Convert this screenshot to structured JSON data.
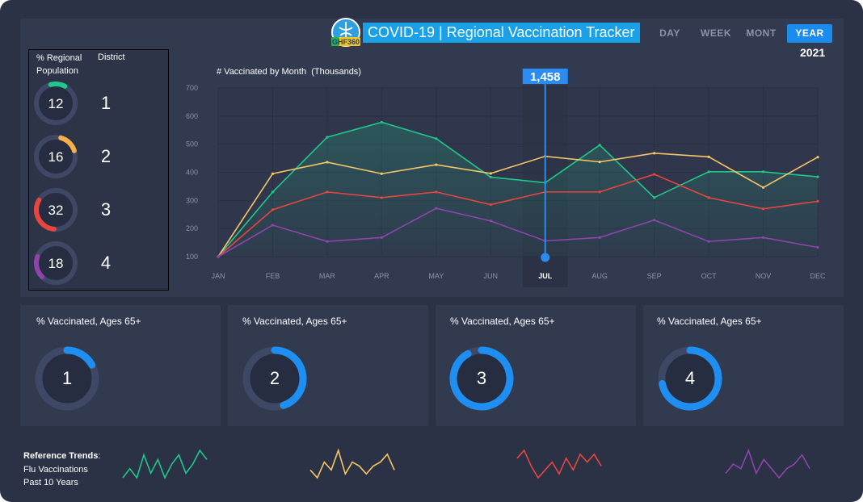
{
  "header": {
    "title": "COVID-19 | Regional Vaccination Tracker",
    "logo_text": "GHF360",
    "periods": [
      "DAY",
      "WEEK",
      "MONT",
      "YEAR"
    ],
    "active_period": "YEAR",
    "year": "2021"
  },
  "districts": {
    "col_population": "% Regional",
    "col_population_2": "Population",
    "col_district": "District",
    "items": [
      {
        "value": "12",
        "district": "1",
        "percent": 12,
        "color": "#1ec88a"
      },
      {
        "value": "16",
        "district": "2",
        "percent": 16,
        "color": "#f5b04a"
      },
      {
        "value": "32",
        "district": "3",
        "percent": 32,
        "color": "#e8453f"
      },
      {
        "value": "18",
        "district": "4",
        "percent": 18,
        "color": "#8e44ad"
      }
    ]
  },
  "chart_data": {
    "type": "line",
    "title": "# Vaccinated by Month",
    "title_unit": "(Thousands)",
    "categories": [
      "JAN",
      "FEB",
      "MAR",
      "APR",
      "MAY",
      "JUN",
      "JUL",
      "AUG",
      "SEP",
      "OCT",
      "NOV",
      "DEC"
    ],
    "ylim": [
      100,
      700
    ],
    "yticks": [
      100,
      200,
      300,
      400,
      500,
      600,
      700
    ],
    "highlight_category": "JUL",
    "highlight_label": "1,458",
    "series": [
      {
        "color": "#1ec88a",
        "values": [
          100,
          330,
          525,
          578,
          520,
          383,
          363,
          497,
          310,
          402,
          402,
          384
        ]
      },
      {
        "color": "#f5c567",
        "values": [
          100,
          395,
          436,
          395,
          427,
          396,
          457,
          437,
          468,
          455,
          346,
          454
        ]
      },
      {
        "color": "#e8453f",
        "values": [
          100,
          267,
          330,
          310,
          330,
          285,
          330,
          330,
          393,
          310,
          270,
          297
        ]
      },
      {
        "color": "#8e44ad",
        "values": [
          100,
          212,
          154,
          168,
          272,
          227,
          156,
          168,
          230,
          154,
          168,
          133
        ]
      }
    ]
  },
  "cards": [
    {
      "title": "% Vaccinated, Ages 65+",
      "label": "1",
      "percent": 17
    },
    {
      "title": "% Vaccinated, Ages 65+",
      "label": "2",
      "percent": 45
    },
    {
      "title": "% Vaccinated, Ages 65+",
      "label": "3",
      "percent": 92
    },
    {
      "title": "% Vaccinated, Ages 65+",
      "label": "4",
      "percent": 72
    }
  ],
  "reference": {
    "label_bold": "Reference Trends",
    "label_suffix": ":",
    "line1": "Flu Vaccinations",
    "line2": "Past 10 Years",
    "sparklines": [
      {
        "color": "#1ec88a",
        "values": [
          3,
          5,
          3,
          8,
          4,
          7,
          3,
          6,
          8,
          4,
          6,
          9,
          7
        ]
      },
      {
        "color": "#f5c567",
        "values": [
          4,
          2,
          6,
          4,
          9,
          3,
          6,
          5,
          3,
          5,
          6,
          8,
          4
        ]
      },
      {
        "color": "#e8453f",
        "values": [
          7,
          9,
          5,
          2,
          4,
          6,
          3,
          7,
          4,
          8,
          6,
          8,
          5
        ]
      },
      {
        "color": "#8e44ad",
        "values": [
          4,
          6,
          5,
          9,
          4,
          7,
          5,
          3,
          5,
          6,
          8,
          5
        ]
      }
    ]
  }
}
